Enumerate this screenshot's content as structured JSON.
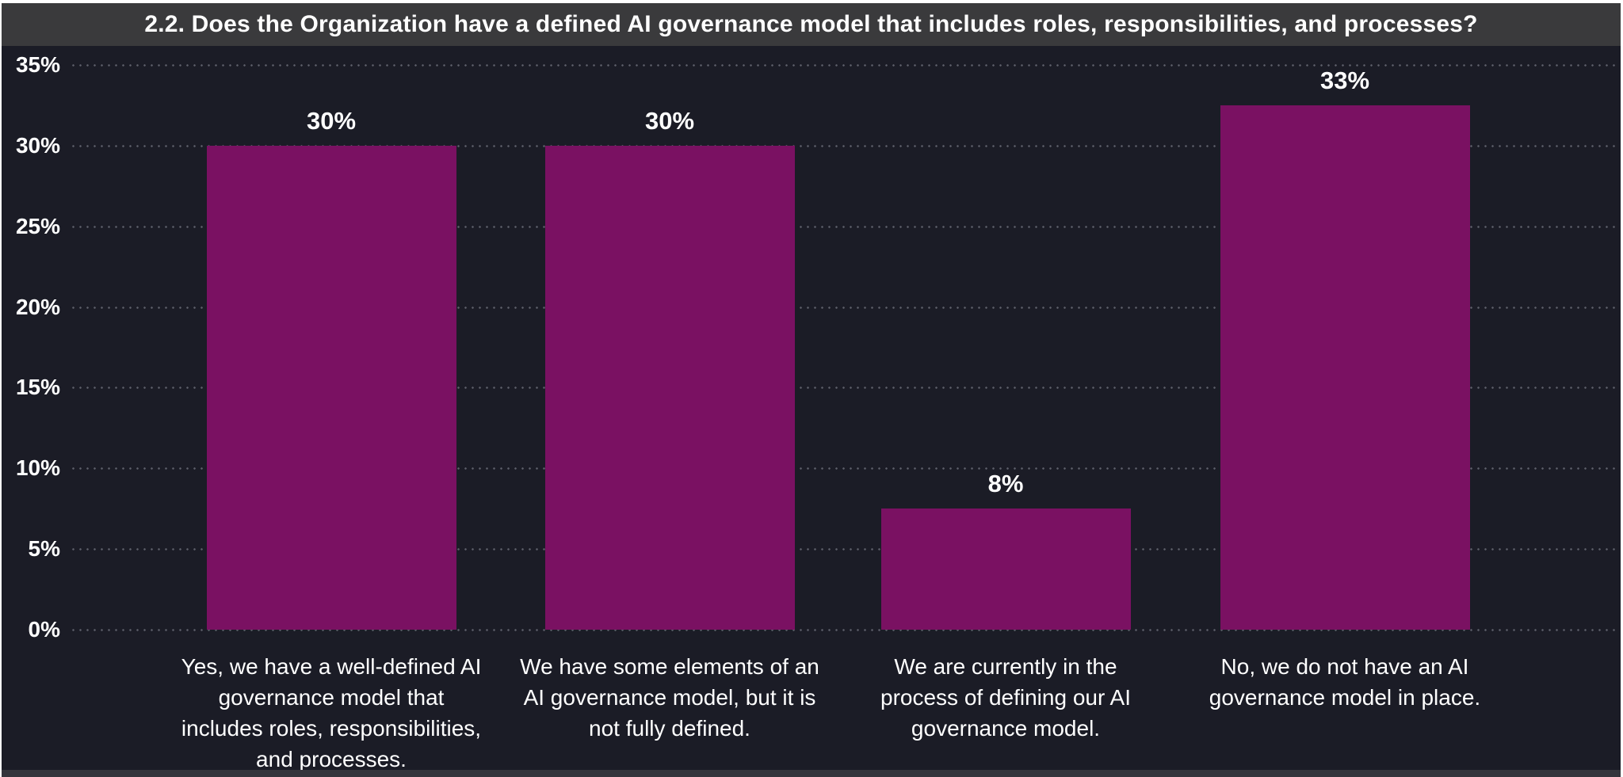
{
  "title_bar": {
    "title": "2.2. Does the Organization have a defined AI governance model that includes roles, responsibilities, and processes?"
  },
  "colors": {
    "background": "#1b1c26",
    "title_bar_bg": "#3a3a3c",
    "bar": "#7a1162",
    "text": "#ffffff",
    "grid_dot": "#5d5f6a",
    "footer_bg": "#34353c",
    "frame_border": "#ffffff"
  },
  "chart_data": {
    "type": "bar",
    "title": "2.2. Does the Organization have a defined AI governance model that includes roles, responsibilities, and processes?",
    "categories": [
      "Yes, we have a well-defined AI governance model that includes roles, responsibilities, and processes.",
      "We have some elements of an AI governance model, but it is not fully defined.",
      "We are currently in the process of defining our AI governance model.",
      "No, we do not have an AI governance model in place."
    ],
    "category_lines": [
      [
        "Yes, we have a well-defined AI",
        "governance model that",
        "includes roles, responsibilities,",
        "and processes."
      ],
      [
        "We have some elements of an",
        "AI governance model, but it is",
        "not fully defined."
      ],
      [
        "We are currently in the",
        "process of defining our AI",
        "governance model."
      ],
      [
        "No, we do not have an AI",
        "governance model in place."
      ]
    ],
    "values": [
      30,
      30,
      8,
      33
    ],
    "bar_heights_pct": [
      30,
      30,
      7.5,
      32.5
    ],
    "data_labels": [
      "30%",
      "30%",
      "8%",
      "33%"
    ],
    "yticks": [
      "0%",
      "5%",
      "10%",
      "15%",
      "20%",
      "25%",
      "30%",
      "35%"
    ],
    "ytick_values": [
      0,
      5,
      10,
      15,
      20,
      25,
      30,
      35
    ],
    "ylim": [
      0,
      35
    ],
    "xlabel": "",
    "ylabel": "",
    "grid": "horizontal-dotted",
    "legend": "none",
    "bar_color": "#7a1162"
  }
}
